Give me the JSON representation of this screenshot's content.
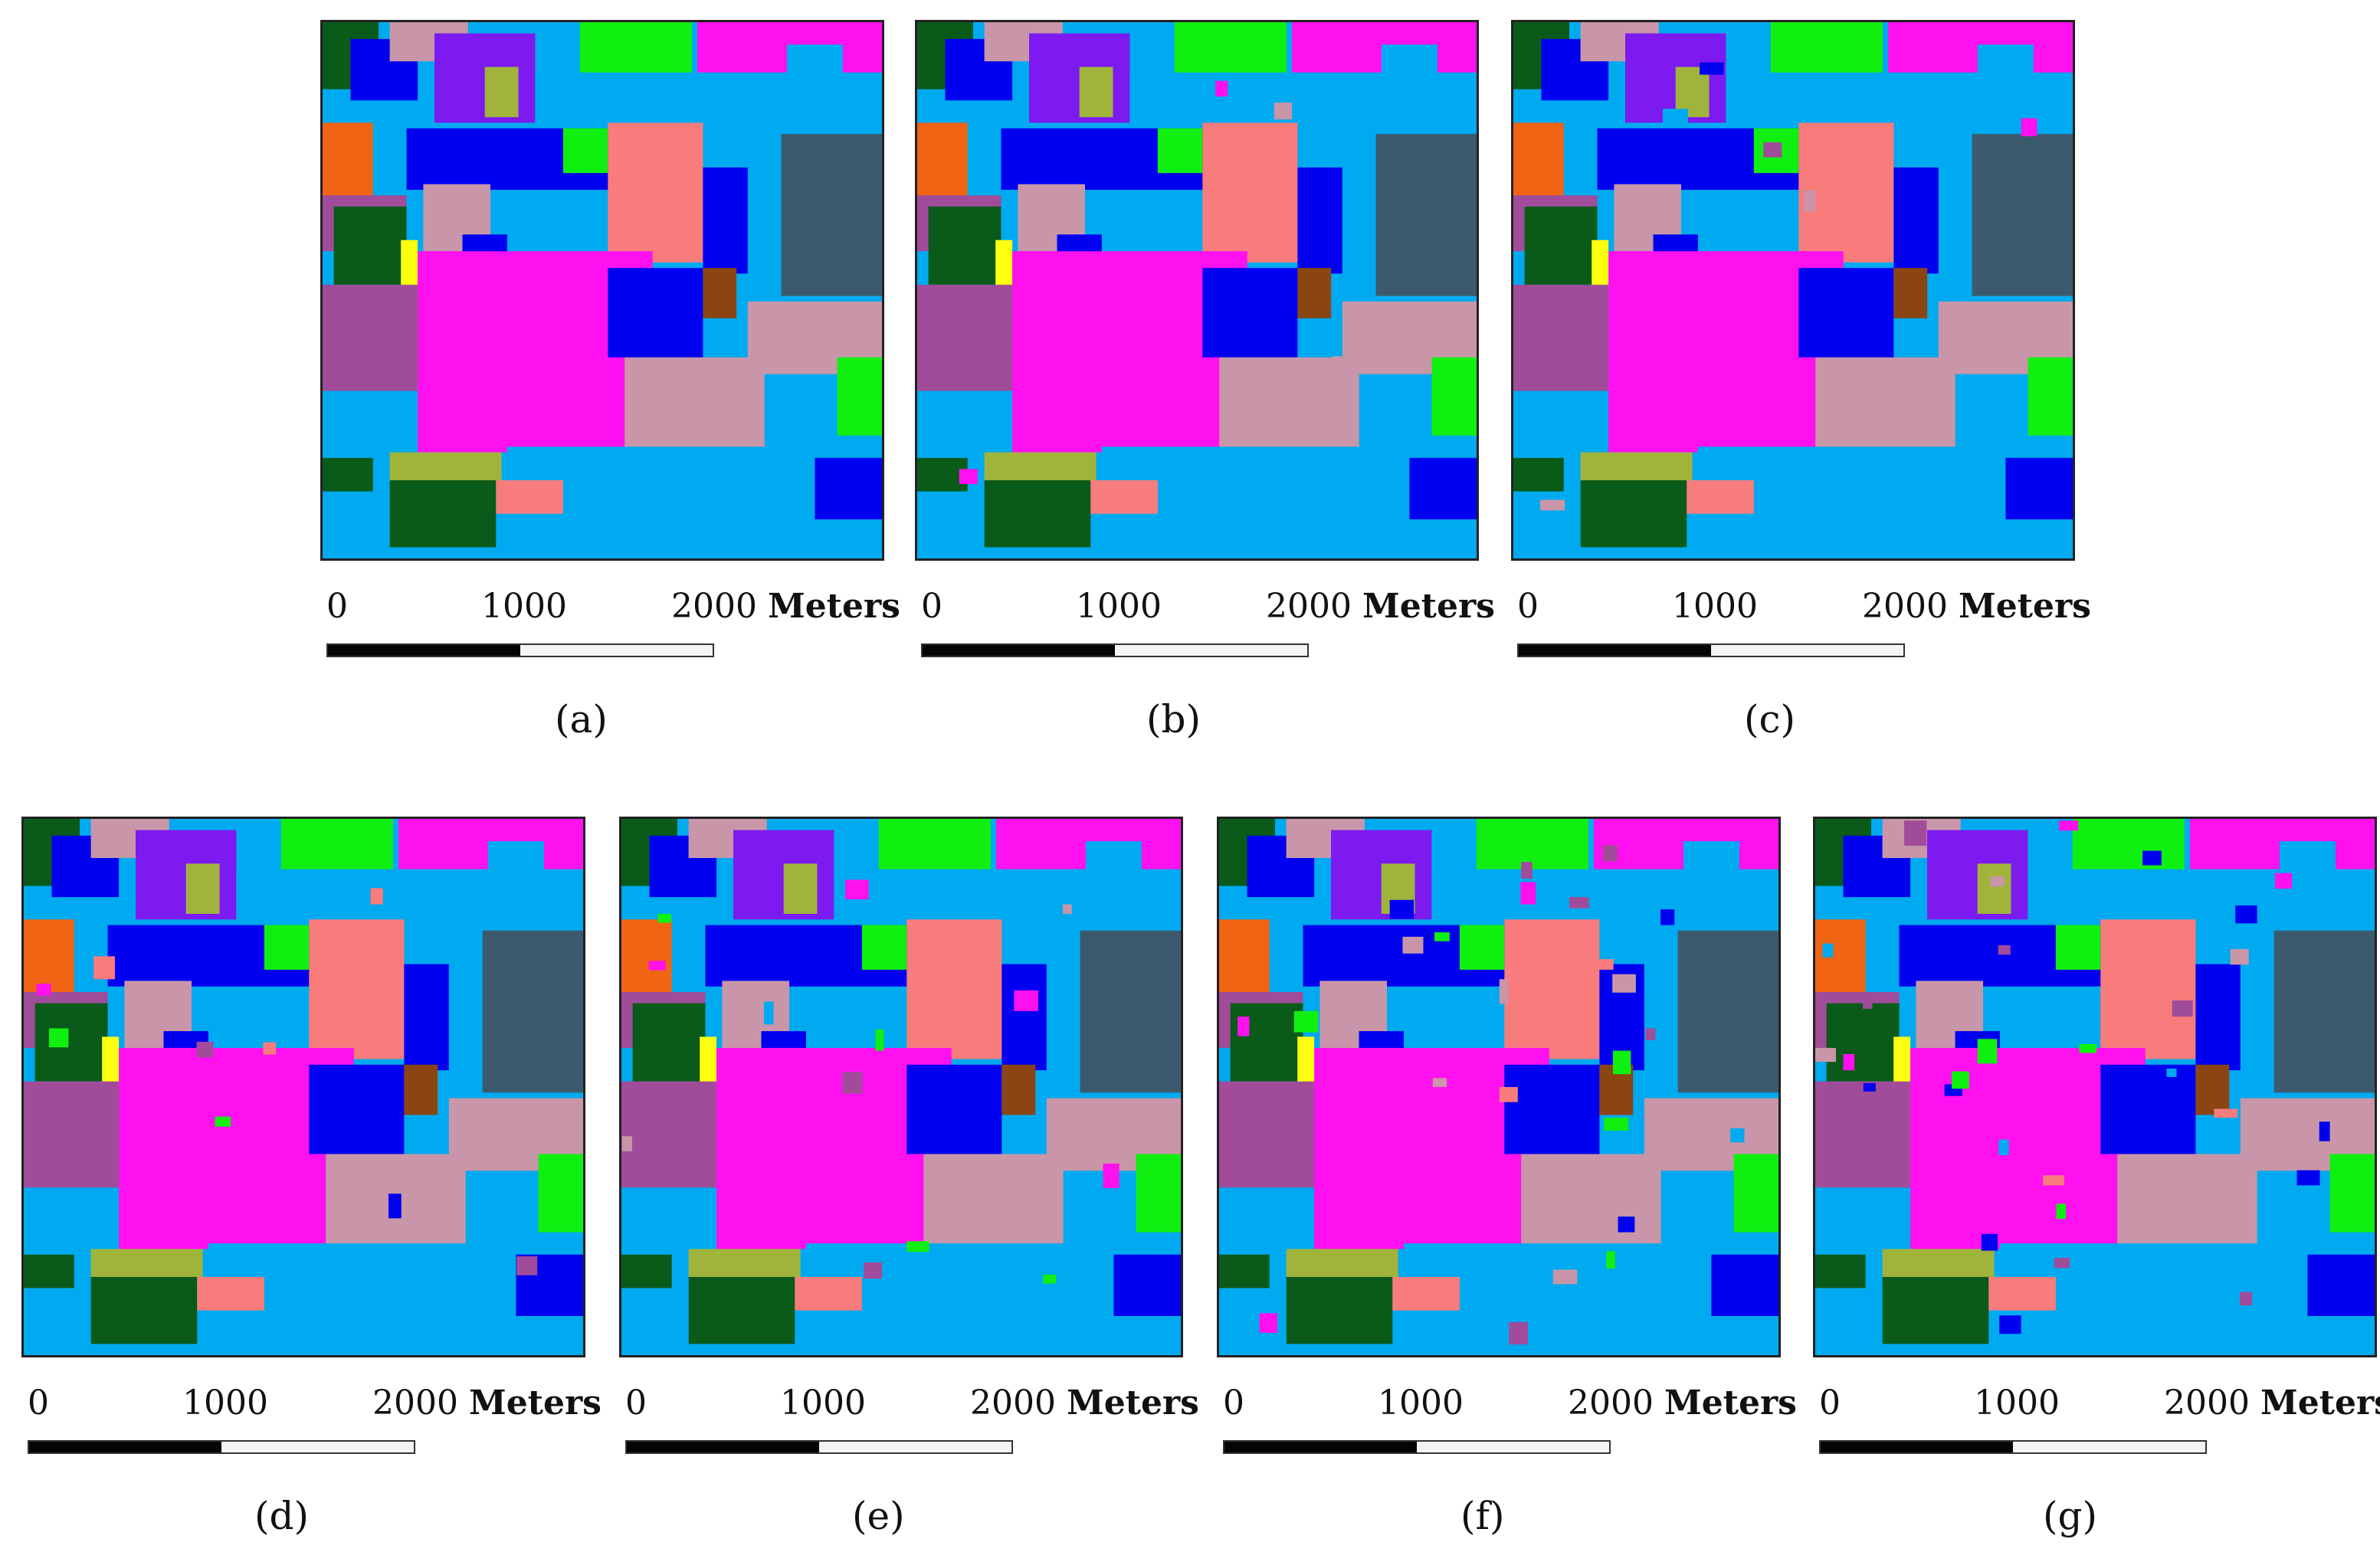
{
  "scale_bar": {
    "tick_0": "0",
    "tick_1": "1000",
    "tick_2": "2000",
    "unit": "Meters"
  },
  "panels": [
    {
      "caption": "(a)"
    },
    {
      "caption": "(b)"
    },
    {
      "caption": "(c)"
    },
    {
      "caption": "(d)"
    },
    {
      "caption": "(e)"
    },
    {
      "caption": "(f)"
    },
    {
      "caption": "(g)"
    }
  ],
  "class_colors": {
    "sky_blue": "#00aaf0",
    "magenta": "#ff10ee",
    "pink_salmon": "#f87c7c",
    "mauve": "#c896a8",
    "blue": "#0000f0",
    "violet": "#7d1af0",
    "green": "#10f010",
    "dark_green": "#0a5a1a",
    "olive": "#a0b43c",
    "orange": "#f06414",
    "slate": "#3c5a6e",
    "purple": "#a04c9a",
    "brown": "#8b4513",
    "yellow": "#ffff10"
  }
}
